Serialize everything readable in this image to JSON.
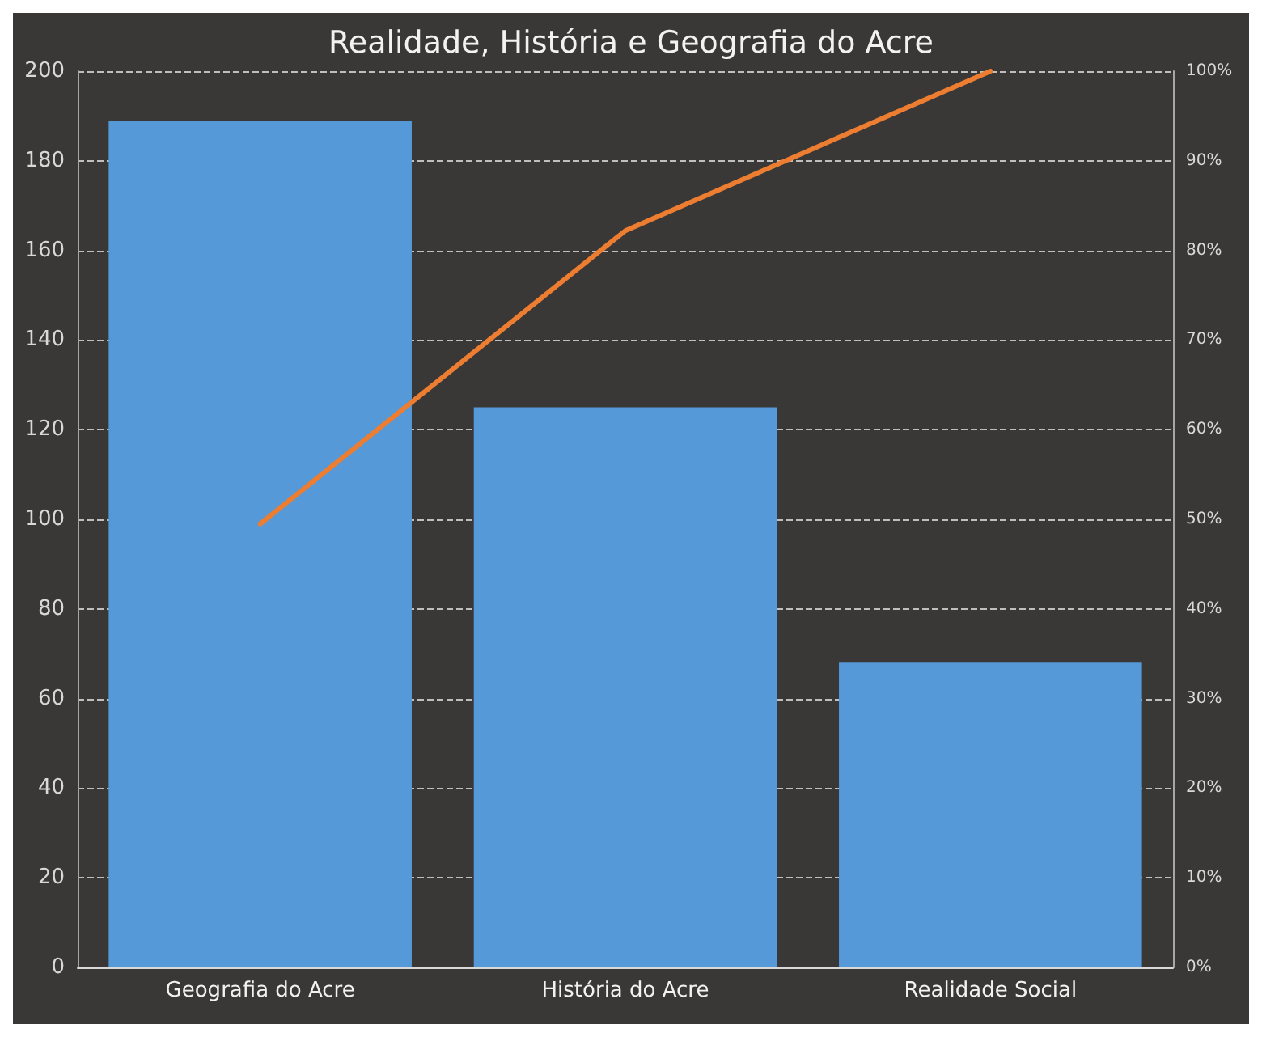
{
  "chart_data": {
    "type": "bar",
    "title": "Realidade, História e Geografia do Acre",
    "categories": [
      "Geografia do Acre",
      "História do Acre",
      "Realidade Social"
    ],
    "series": [
      {
        "color": "#5599d8",
        "values": [
          189,
          125,
          68
        ]
      },
      {
        "type": "line",
        "color": "#ed7d31",
        "axis": "y2",
        "values": [
          49.5,
          82.2,
          100
        ]
      }
    ],
    "ylim": [
      0,
      200
    ],
    "yticks": [
      0,
      20,
      40,
      60,
      80,
      100,
      120,
      140,
      160,
      180,
      200
    ],
    "y2lim": [
      0,
      100
    ],
    "y2ticks": [
      {
        "value": 0,
        "label": "0%"
      },
      {
        "value": 10,
        "label": "10%"
      },
      {
        "value": 20,
        "label": "20%"
      },
      {
        "value": 30,
        "label": "30%"
      },
      {
        "value": 40,
        "label": "40%"
      },
      {
        "value": 50,
        "label": "50%"
      },
      {
        "value": 60,
        "label": "60%"
      },
      {
        "value": 70,
        "label": "70%"
      },
      {
        "value": 80,
        "label": "80%"
      },
      {
        "value": 90,
        "label": "90%"
      },
      {
        "value": 100,
        "label": "100%"
      }
    ],
    "grid": "y",
    "marker": "none",
    "line_style": "solid"
  }
}
